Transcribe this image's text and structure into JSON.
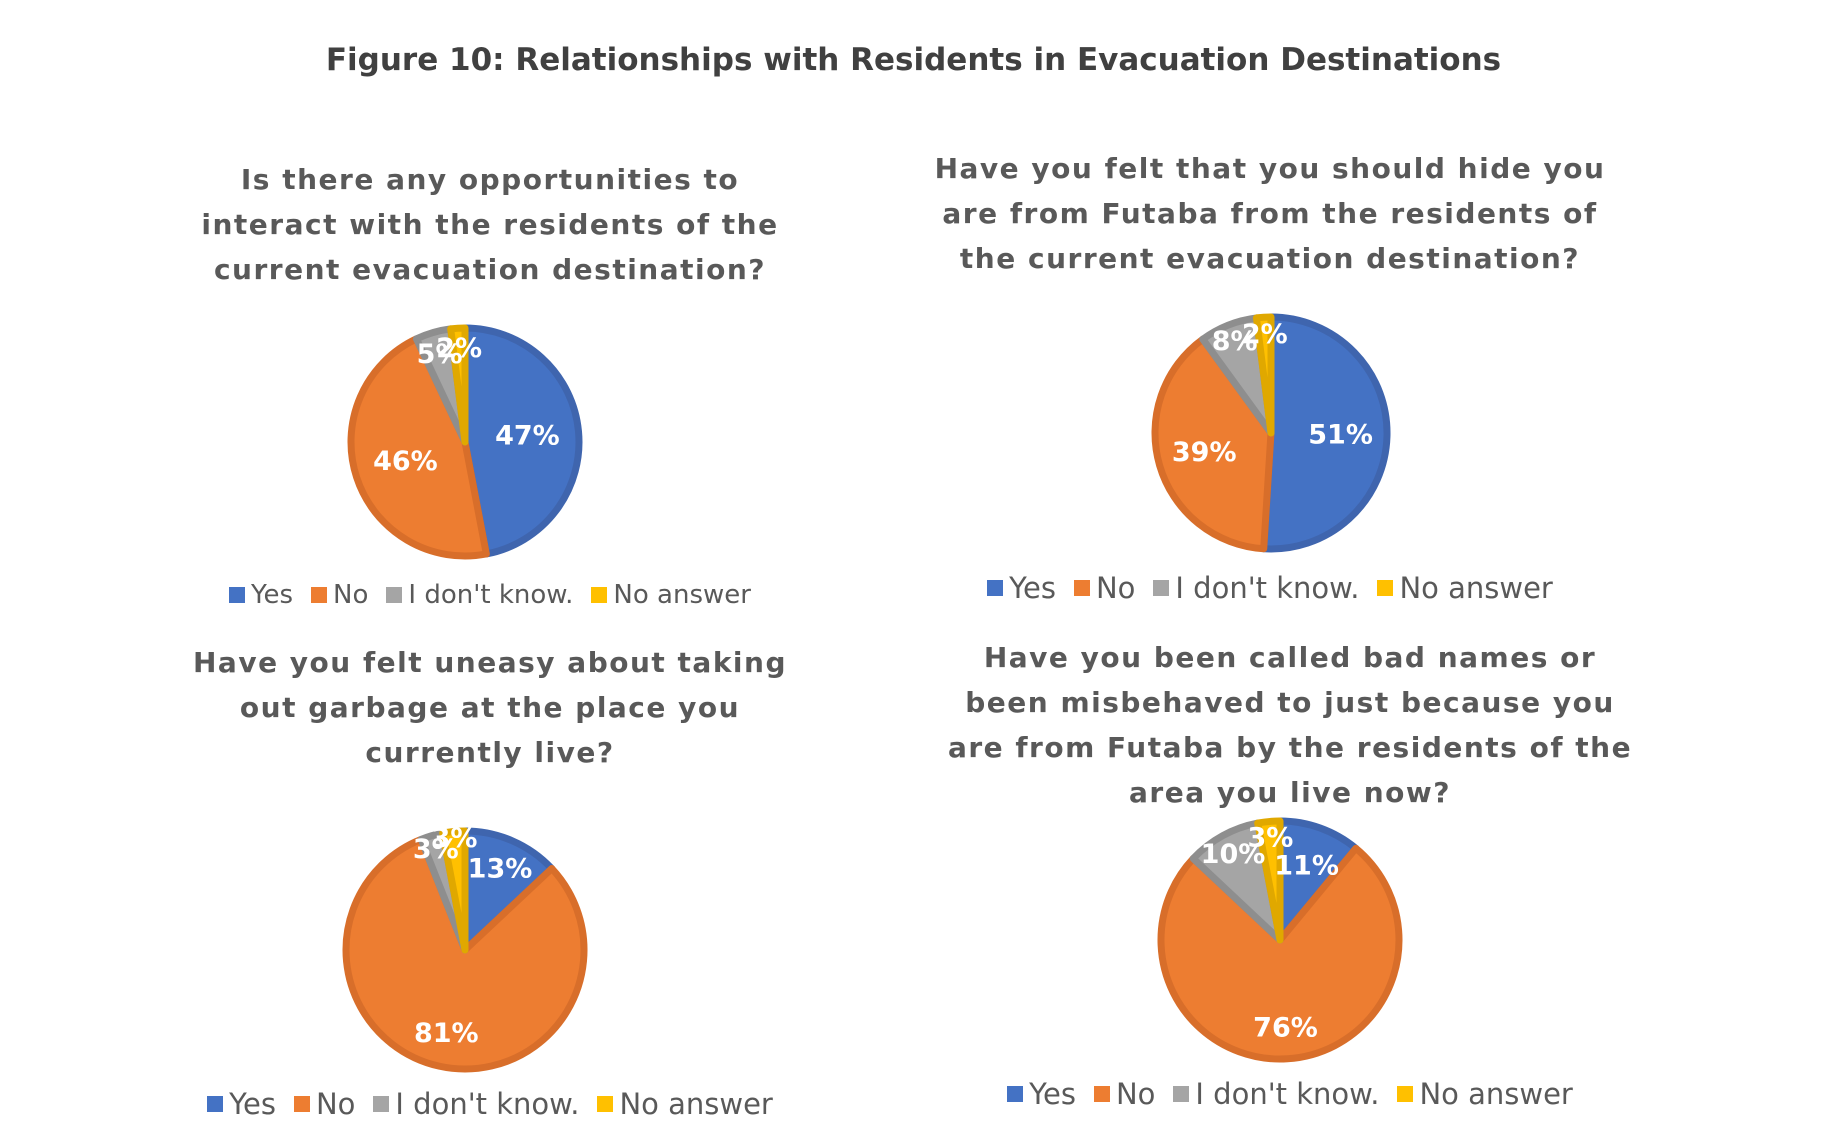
{
  "figure": {
    "title": "Figure 10: Relationships with Residents in Evacuation Destinations"
  },
  "colors": {
    "Yes": "#4472C4",
    "No": "#ED7D31",
    "I don't know.": "#A5A5A5",
    "No answer": "#FFC000"
  },
  "chart_data": [
    {
      "type": "pie",
      "title": "Is there any opportunities to interact with the residents of the current evacuation destination?",
      "title_lines": [
        "Is there any opportunities to",
        "interact with the residents of the",
        "current evacuation destination?"
      ],
      "categories": [
        "Yes",
        "No",
        "I don't know.",
        "No answer"
      ],
      "values": [
        47,
        46,
        5,
        2
      ],
      "data_labels": [
        "47%",
        "46%",
        "5%",
        "2%"
      ],
      "legend": "bottom"
    },
    {
      "type": "pie",
      "title": "Have you felt that you should hide you are from Futaba from the residents of the current evacuation destination?",
      "title_lines": [
        "Have you felt that you should hide you",
        "are from Futaba from the residents of",
        "the current evacuation destination?"
      ],
      "categories": [
        "Yes",
        "No",
        "I don't know.",
        "No answer"
      ],
      "values": [
        51,
        39,
        8,
        2
      ],
      "data_labels": [
        "51%",
        "39%",
        "8%",
        "2%"
      ],
      "legend": "bottom"
    },
    {
      "type": "pie",
      "title": "Have you felt uneasy about taking out garbage at the place you currently live?",
      "title_lines": [
        "Have you felt uneasy about taking",
        "out garbage at the place you",
        "currently live?"
      ],
      "categories": [
        "Yes",
        "No",
        "I don't know.",
        "No answer"
      ],
      "values": [
        13,
        81,
        3,
        3
      ],
      "data_labels": [
        "13%",
        "81%",
        "3%",
        "3%"
      ],
      "legend": "bottom"
    },
    {
      "type": "pie",
      "title": "Have you been called bad names or been misbehaved to just because you are from Futaba by the residents of the area you live now?",
      "title_lines": [
        "Have you been called bad names or",
        "been misbehaved to just because you",
        "are from Futaba by the residents of the",
        "area you live now?"
      ],
      "categories": [
        "Yes",
        "No",
        "I don't know.",
        "No answer"
      ],
      "values": [
        11,
        76,
        10,
        3
      ],
      "data_labels": [
        "11%",
        "76%",
        "10%",
        "3%"
      ],
      "legend": "bottom"
    }
  ]
}
